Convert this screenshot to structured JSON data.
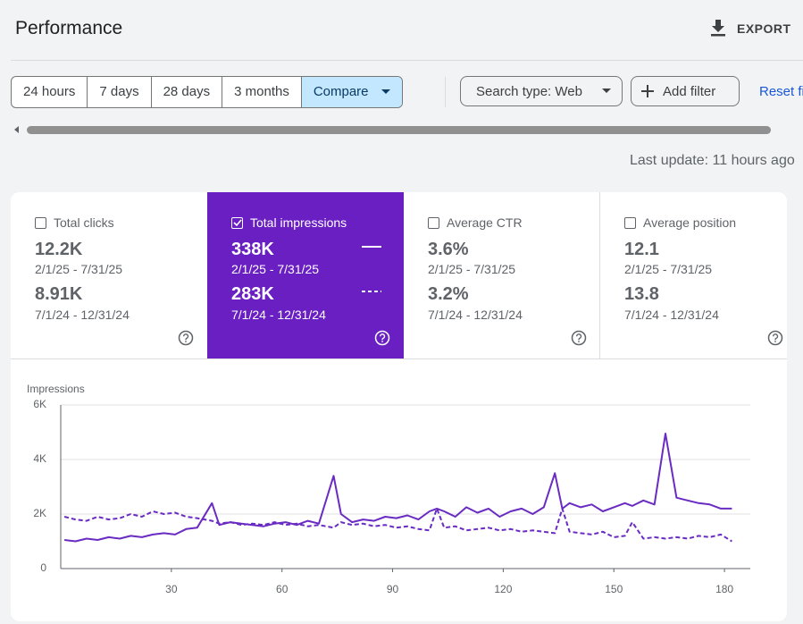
{
  "header": {
    "title": "Performance",
    "export": "EXPORT"
  },
  "date_chips": [
    {
      "label": "24 hours",
      "selected": false
    },
    {
      "label": "7 days",
      "selected": false
    },
    {
      "label": "28 days",
      "selected": false
    },
    {
      "label": "3 months",
      "selected": false
    },
    {
      "label": "Compare",
      "selected": true
    }
  ],
  "filters": {
    "search_type": "Search type: Web",
    "add_filter": "Add filter",
    "reset": "Reset filters"
  },
  "last_update": "Last update: 11 hours ago",
  "metrics": [
    {
      "label": "Total clicks",
      "checked": false,
      "values": [
        {
          "value": "12.2K",
          "range": "2/1/25 - 7/31/25"
        },
        {
          "value": "8.91K",
          "range": "7/1/24 - 12/31/24"
        }
      ]
    },
    {
      "label": "Total impressions",
      "checked": true,
      "values": [
        {
          "value": "338K",
          "range": "2/1/25 - 7/31/25"
        },
        {
          "value": "283K",
          "range": "7/1/24 - 12/31/24"
        }
      ]
    },
    {
      "label": "Average CTR",
      "checked": false,
      "values": [
        {
          "value": "3.6%",
          "range": "2/1/25 - 7/31/25"
        },
        {
          "value": "3.2%",
          "range": "7/1/24 - 12/31/24"
        }
      ]
    },
    {
      "label": "Average position",
      "checked": false,
      "values": [
        {
          "value": "12.1",
          "range": "2/1/25 - 7/31/25"
        },
        {
          "value": "13.8",
          "range": "7/1/24 - 12/31/24"
        }
      ]
    }
  ],
  "chart_data": {
    "type": "line",
    "y_label": "Impressions",
    "x": [
      1,
      4,
      7,
      10,
      13,
      16,
      19,
      22,
      25,
      28,
      31,
      34,
      37,
      41,
      43,
      46,
      49,
      52,
      55,
      58,
      61,
      64,
      67,
      70,
      74,
      76,
      79,
      82,
      85,
      88,
      91,
      94,
      97,
      100,
      102,
      104,
      107,
      110,
      113,
      116,
      119,
      122,
      125,
      128,
      131,
      134,
      136,
      138,
      141,
      144,
      147,
      150,
      153,
      155,
      158,
      161,
      164,
      167,
      170,
      173,
      176,
      179,
      182
    ],
    "series": [
      {
        "color": "#6a2bc2",
        "style": "solid",
        "values": [
          1050,
          1000,
          1100,
          1050,
          1150,
          1100,
          1200,
          1150,
          1250,
          1300,
          1250,
          1450,
          1500,
          2400,
          1600,
          1700,
          1650,
          1600,
          1550,
          1650,
          1700,
          1600,
          1750,
          1650,
          3400,
          2000,
          1700,
          1800,
          1750,
          1900,
          1850,
          1950,
          1800,
          2100,
          2200,
          2100,
          1900,
          2250,
          2050,
          2200,
          1900,
          2100,
          2200,
          2000,
          2250,
          3500,
          2200,
          2400,
          2250,
          2350,
          2100,
          2250,
          2400,
          2300,
          2500,
          2350,
          4950,
          2600,
          2500,
          2400,
          2350,
          2200,
          2200
        ]
      },
      {
        "color": "#6a2bc2",
        "style": "dashed",
        "values": [
          1900,
          1800,
          1750,
          1900,
          1800,
          1850,
          2000,
          1900,
          2100,
          2000,
          2050,
          1900,
          1850,
          1750,
          1650,
          1700,
          1600,
          1650,
          1600,
          1700,
          1600,
          1650,
          1550,
          1600,
          1500,
          1700,
          1600,
          1650,
          1550,
          1600,
          1500,
          1550,
          1450,
          1400,
          2200,
          1500,
          1550,
          1400,
          1450,
          1500,
          1400,
          1450,
          1350,
          1400,
          1350,
          1300,
          2200,
          1350,
          1300,
          1250,
          1350,
          1150,
          1200,
          1700,
          1100,
          1150,
          1100,
          1150,
          1100,
          1200,
          1150,
          1250,
          1000
        ]
      }
    ],
    "xlim": [
      0,
      187
    ],
    "xticks": [
      30,
      60,
      90,
      120,
      150,
      180
    ],
    "ylim": [
      0,
      6000
    ],
    "yticks": [
      0,
      {
        "value": 2000,
        "label": "2K"
      },
      {
        "value": 4000,
        "label": "4K"
      },
      {
        "value": 6000,
        "label": "6K"
      }
    ],
    "grid": true
  }
}
